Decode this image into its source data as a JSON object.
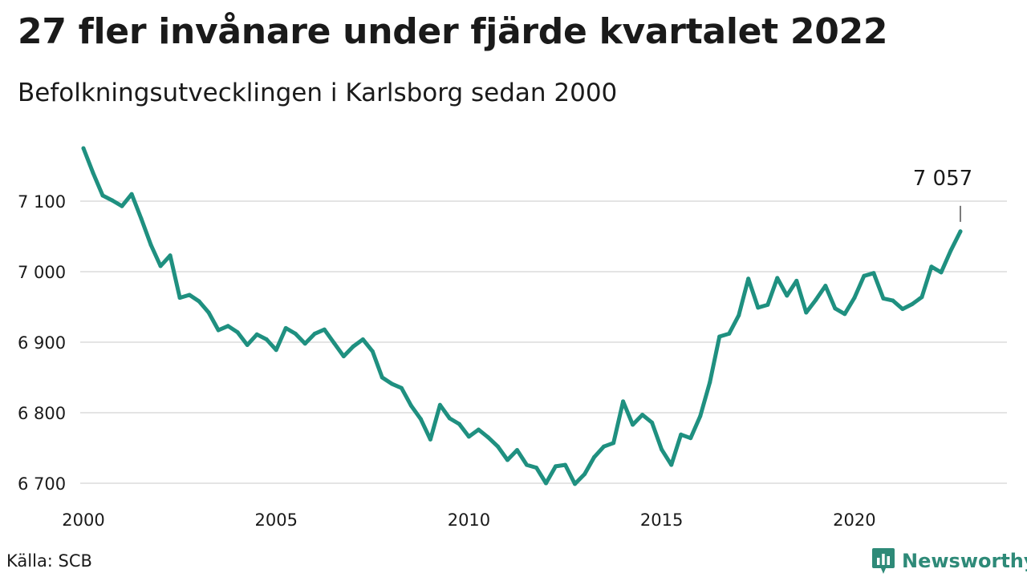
{
  "title": "27 fler invånare under fjärde kvartalet 2022",
  "subtitle": "Befolkningsutvecklingen i Karlsborg sedan 2000",
  "source": "Källa: SCB",
  "brand": {
    "name": "Newsworthy",
    "icon": "newsworthy-logo-icon",
    "color": "#2e8a78"
  },
  "chart_data": {
    "type": "line",
    "title": "27 fler invånare under fjärde kvartalet 2022",
    "subtitle": "Befolkningsutvecklingen i Karlsborg sedan 2000",
    "xlabel": "",
    "ylabel": "",
    "color": "#1f9080",
    "grid": true,
    "xlim": [
      2000,
      2023.25
    ],
    "ylim": [
      6680,
      7180
    ],
    "x_ticks": [
      {
        "value": 2000,
        "label": "2000"
      },
      {
        "value": 2005,
        "label": "2005"
      },
      {
        "value": 2010,
        "label": "2010"
      },
      {
        "value": 2015,
        "label": "2015"
      },
      {
        "value": 2020,
        "label": "2020"
      }
    ],
    "y_ticks": [
      {
        "value": 6700,
        "label": "6 700"
      },
      {
        "value": 6800,
        "label": "6 800"
      },
      {
        "value": 6900,
        "label": "6 900"
      },
      {
        "value": 7000,
        "label": "7 000"
      },
      {
        "value": 7100,
        "label": "7 100"
      }
    ],
    "x_start": 2000,
    "x_step": 0.25,
    "values": [
      7175,
      7140,
      7108,
      7101,
      7093,
      7110,
      7075,
      7038,
      7008,
      7023,
      6963,
      6967,
      6958,
      6942,
      6917,
      6923,
      6914,
      6896,
      6911,
      6904,
      6889,
      6920,
      6912,
      6898,
      6912,
      6918,
      6899,
      6880,
      6894,
      6904,
      6887,
      6850,
      6841,
      6835,
      6810,
      6791,
      6762,
      6811,
      6792,
      6784,
      6766,
      6776,
      6765,
      6752,
      6733,
      6747,
      6726,
      6722,
      6700,
      6724,
      6726,
      6699,
      6713,
      6737,
      6752,
      6757,
      6816,
      6783,
      6797,
      6786,
      6748,
      6726,
      6769,
      6764,
      6795,
      6843,
      6908,
      6912,
      6938,
      6990,
      6949,
      6953,
      6991,
      6966,
      6987,
      6942,
      6960,
      6980,
      6948,
      6940,
      6963,
      6994,
      6998,
      6962,
      6959,
      6947,
      6954,
      6964,
      7007,
      6999,
      7030,
      7057
    ],
    "annotation": {
      "label": "7 057",
      "value": 7057
    }
  }
}
